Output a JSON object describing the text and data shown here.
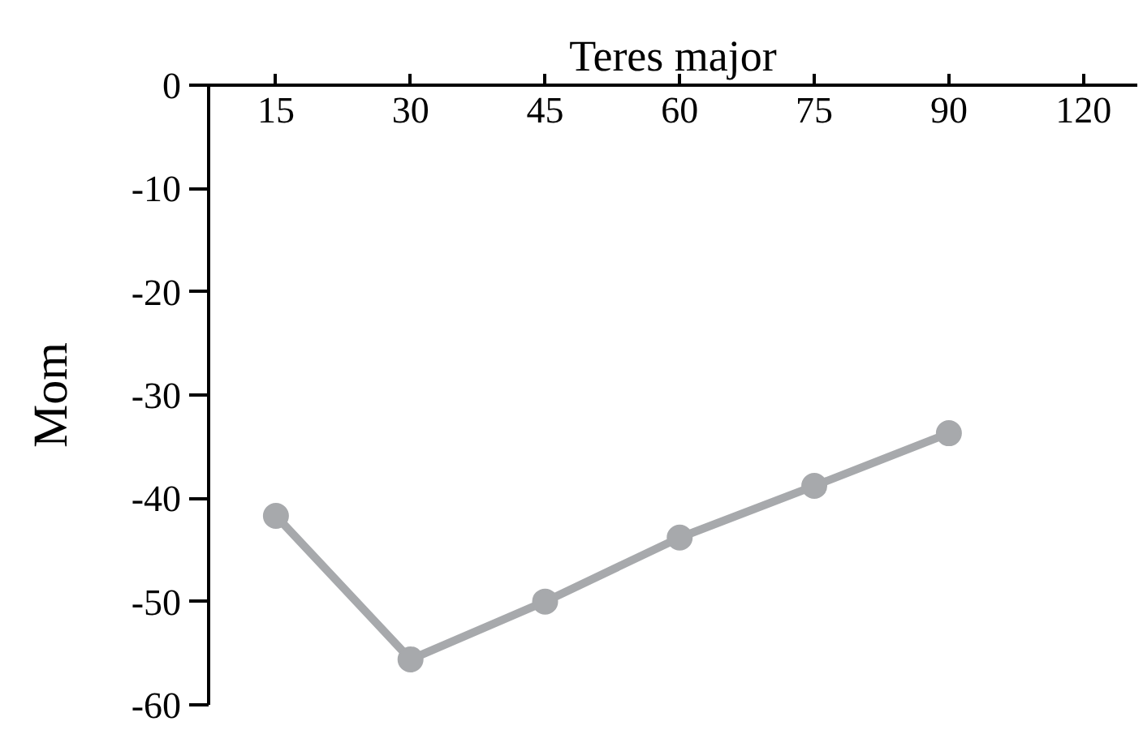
{
  "chart_data": {
    "type": "line",
    "title": "Teres major",
    "ylabel": "Mom",
    "categories": [
      "15",
      "30",
      "45",
      "60",
      "75",
      "90",
      "120"
    ],
    "series": [
      {
        "color": "#a7a9ac",
        "values": [
          -41.7,
          -55.6,
          -50,
          -43.8,
          -38.8,
          -33.7,
          null
        ]
      }
    ],
    "ylim": [
      -60,
      0
    ],
    "yticks": [
      0,
      -10,
      -20,
      -30,
      -40,
      -50,
      -60
    ],
    "marker": "circle",
    "line_style": "solid",
    "grid": false
  }
}
